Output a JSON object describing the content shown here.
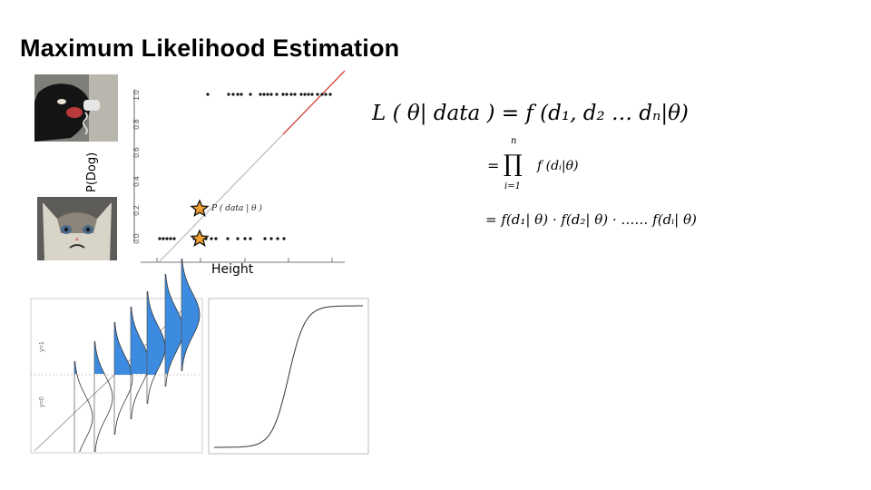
{
  "title": "Maximum Likelihood Estimation",
  "ylabel": "P(Dog)",
  "xlabel": "Height",
  "annotation": "P ( data | θ )",
  "scatter_yticks": [
    "0.0",
    "0.2",
    "0.4",
    "0.6",
    "0.8",
    "1.0"
  ],
  "logistic_yticks": [
    "y=0",
    "y=1"
  ],
  "equations": {
    "line1": "L ( θ| data ) = f (d₁, d₂ … dₙ|θ)",
    "line2_prefix": "=",
    "line2_product_top": "n",
    "line2_product_bottom": "i=1",
    "line2_body": "f (dᵢ|θ)",
    "line3": "= f(d₁| θ) · f(d₂| θ) · …… f(dᵢ| θ)"
  },
  "colors": {
    "regression_line": "#d9453d",
    "gaussian_fill": "#3d8be0",
    "star_fill": "#f0a030"
  }
}
